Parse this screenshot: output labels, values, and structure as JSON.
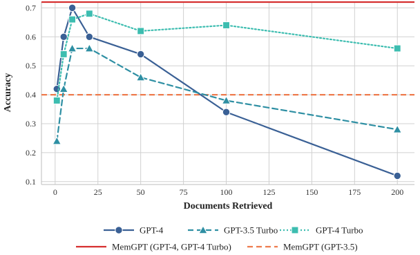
{
  "chart_data": {
    "type": "line",
    "xlabel": "Documents Retrieved",
    "ylabel": "Accuracy",
    "xlim": [
      -8,
      210
    ],
    "ylim": [
      0.09,
      0.72
    ],
    "x_ticks": [
      0,
      25,
      50,
      75,
      100,
      125,
      150,
      175,
      200
    ],
    "y_ticks": [
      0.1,
      0.2,
      0.3,
      0.4,
      0.5,
      0.6,
      0.7
    ],
    "grid": true,
    "legend_position": "bottom",
    "series": [
      {
        "name": "GPT-4",
        "color": "#3a6095",
        "line_style": "solid",
        "marker": "circle",
        "x": [
          1,
          5,
          10,
          20,
          50,
          100,
          200
        ],
        "y": [
          0.42,
          0.6,
          0.7,
          0.6,
          0.54,
          0.34,
          0.12
        ]
      },
      {
        "name": "GPT-3.5 Turbo",
        "color": "#2e8fa3",
        "line_style": "dashed",
        "marker": "triangle",
        "x": [
          1,
          5,
          10,
          20,
          50,
          100,
          200
        ],
        "y": [
          0.24,
          0.42,
          0.56,
          0.56,
          0.46,
          0.38,
          0.28
        ]
      },
      {
        "name": "GPT-4 Turbo",
        "color": "#3dbdb0",
        "line_style": "dotted",
        "marker": "square",
        "x": [
          1,
          5,
          10,
          20,
          50,
          100,
          200
        ],
        "y": [
          0.38,
          0.54,
          0.66,
          0.68,
          0.62,
          0.64,
          0.56
        ]
      }
    ],
    "reference_lines": [
      {
        "name": "MemGPT (GPT-4, GPT-4 Turbo)",
        "color": "#d62f2f",
        "line_style": "solid",
        "y": 0.72
      },
      {
        "name": "MemGPT (GPT-3.5)",
        "color": "#ee7b4d",
        "line_style": "dashed",
        "y": 0.4
      }
    ]
  }
}
